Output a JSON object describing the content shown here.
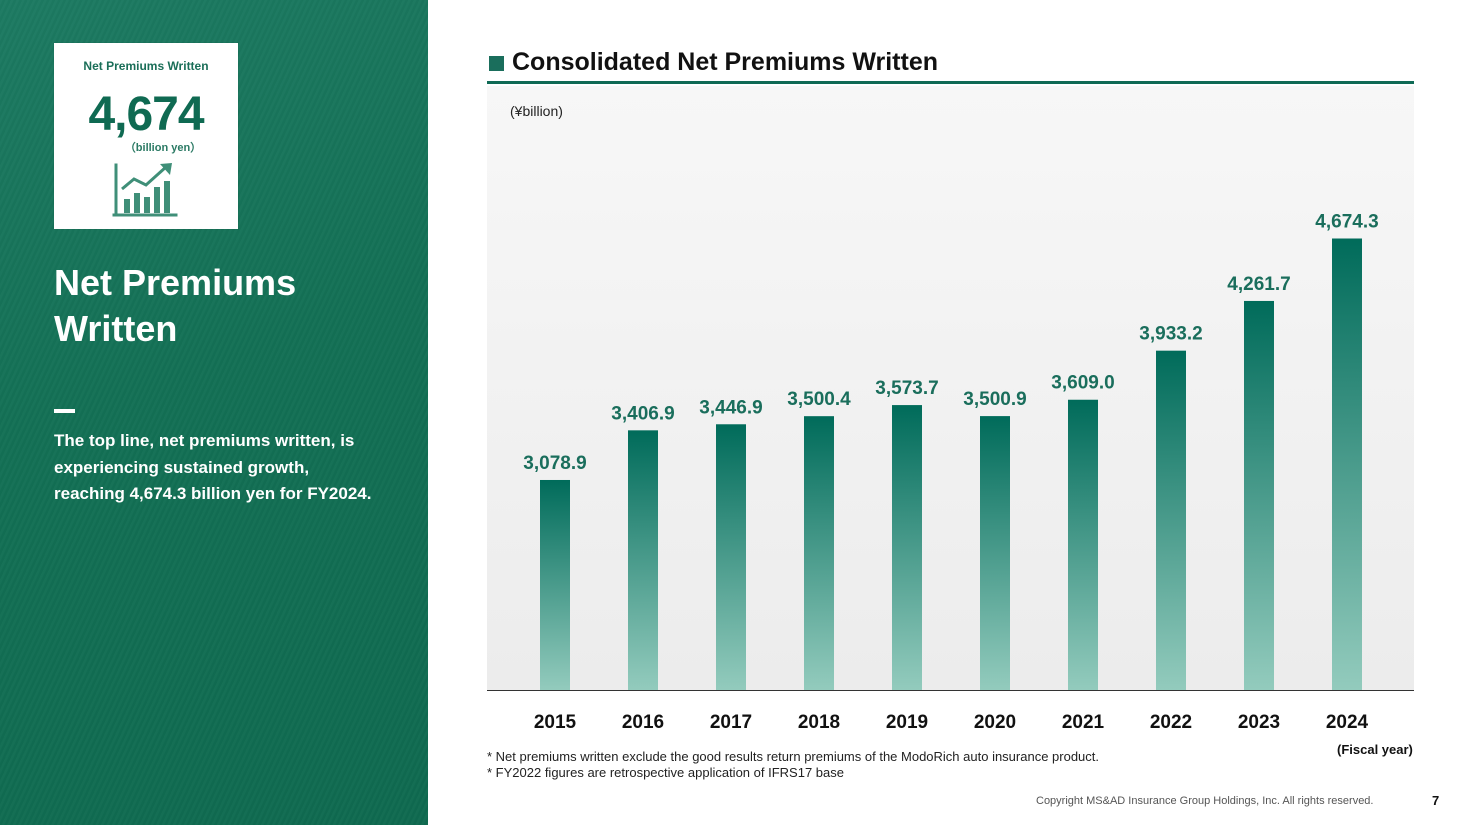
{
  "kpi": {
    "label": "Net Premiums Written",
    "value": "4,674",
    "unit": "（billion yen）",
    "icon": "growth-chart-icon"
  },
  "left": {
    "title": "Net Premiums Written",
    "description": "The top line, net premiums written, is experiencing sustained growth, reaching 4,674.3 billion yen for FY2024."
  },
  "chart_data": {
    "type": "bar",
    "title": "Consolidated Net Premiums Written",
    "ylabel": "(¥billion)",
    "xlabel": "(Fiscal year)",
    "categories": [
      "2015",
      "2016",
      "2017",
      "2018",
      "2019",
      "2020",
      "2021",
      "2022",
      "2023",
      "2024"
    ],
    "values": [
      3078.9,
      3406.9,
      3446.9,
      3500.4,
      3573.7,
      3500.9,
      3609.0,
      3933.2,
      4261.7,
      4674.3
    ],
    "value_labels": [
      "3,078.9",
      "3,406.9",
      "3,446.9",
      "3,500.4",
      "3,573.7",
      "3,500.9",
      "3,609.0",
      "3,933.2",
      "4,261.7",
      "4,674.3"
    ],
    "bar_color_top": "#006b5a",
    "bar_color_bottom": "#93cbbd",
    "label_color": "#1a6e5c",
    "grid": false
  },
  "notes": [
    "* Net premiums written exclude the good results return premiums of the ModoRich auto insurance product.",
    "* FY2022 figures are retrospective application of IFRS17 base"
  ],
  "footer": {
    "copyright": "Copyright MS&AD Insurance Group Holdings, Inc. All rights reserved.",
    "page": "7"
  }
}
